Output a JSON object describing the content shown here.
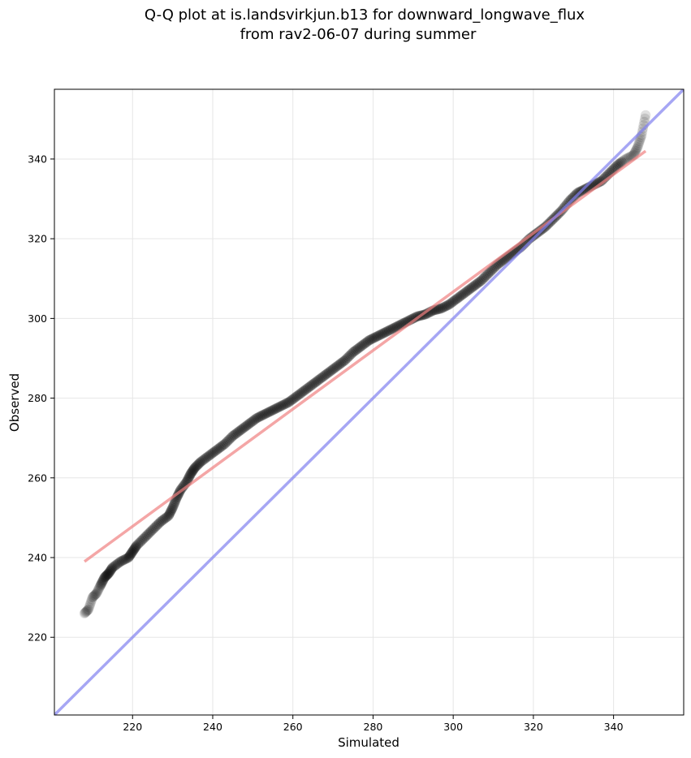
{
  "chart_data": {
    "type": "scatter",
    "title": [
      "Q-Q plot at is.landsvirkjun.b13 for downward_longwave_flux",
      "from rav2-06-07 during summer"
    ],
    "xlabel": "Simulated",
    "ylabel": "Observed",
    "xlim": [
      200.5,
      357.5
    ],
    "ylim": [
      200.5,
      357.5
    ],
    "xticks": [
      220,
      240,
      260,
      280,
      300,
      320,
      340
    ],
    "yticks": [
      220,
      240,
      260,
      280,
      300,
      320,
      340
    ],
    "grid": true,
    "colors": {
      "points": "#000000",
      "fit_line": "#f08080",
      "identity_line": "#8080f0",
      "grid": "#e6e6e6"
    },
    "quantile_curve": [
      [
        208.0,
        226.0
      ],
      [
        209.0,
        227.0
      ],
      [
        210.0,
        230.0
      ],
      [
        211.0,
        231.0
      ],
      [
        212.0,
        233.0
      ],
      [
        213.0,
        235.0
      ],
      [
        214.0,
        236.0
      ],
      [
        215.0,
        237.5
      ],
      [
        217.0,
        239.0
      ],
      [
        219.0,
        240.0
      ],
      [
        220.0,
        241.5
      ],
      [
        221.0,
        243.0
      ],
      [
        223.0,
        245.0
      ],
      [
        225.0,
        247.0
      ],
      [
        227.0,
        249.0
      ],
      [
        229.0,
        250.5
      ],
      [
        230.0,
        252.5
      ],
      [
        231.0,
        255.0
      ],
      [
        232.0,
        257.0
      ],
      [
        233.5,
        259.0
      ],
      [
        234.5,
        261.0
      ],
      [
        235.5,
        262.5
      ],
      [
        237.0,
        264.0
      ],
      [
        239.0,
        265.5
      ],
      [
        241.0,
        267.0
      ],
      [
        243.0,
        268.5
      ],
      [
        245.0,
        270.5
      ],
      [
        247.0,
        272.0
      ],
      [
        249.0,
        273.5
      ],
      [
        251.0,
        275.0
      ],
      [
        253.0,
        276.0
      ],
      [
        255.0,
        277.0
      ],
      [
        257.0,
        278.0
      ],
      [
        259.0,
        279.0
      ],
      [
        261.0,
        280.5
      ],
      [
        263.0,
        282.0
      ],
      [
        265.0,
        283.5
      ],
      [
        267.0,
        285.0
      ],
      [
        269.0,
        286.5
      ],
      [
        271.0,
        288.0
      ],
      [
        273.0,
        289.5
      ],
      [
        275.0,
        291.5
      ],
      [
        277.0,
        293.0
      ],
      [
        279.0,
        294.5
      ],
      [
        281.0,
        295.5
      ],
      [
        283.0,
        296.5
      ],
      [
        285.0,
        297.5
      ],
      [
        287.0,
        298.5
      ],
      [
        289.0,
        299.5
      ],
      [
        291.0,
        300.5
      ],
      [
        293.0,
        301.0
      ],
      [
        295.0,
        302.0
      ],
      [
        297.0,
        302.5
      ],
      [
        299.0,
        303.5
      ],
      [
        301.0,
        305.0
      ],
      [
        303.0,
        306.5
      ],
      [
        305.0,
        308.0
      ],
      [
        307.0,
        309.5
      ],
      [
        309.0,
        311.5
      ],
      [
        311.0,
        313.5
      ],
      [
        313.0,
        315.0
      ],
      [
        315.0,
        316.5
      ],
      [
        317.0,
        318.0
      ],
      [
        319.0,
        320.0
      ],
      [
        321.0,
        321.5
      ],
      [
        323.0,
        323.0
      ],
      [
        325.0,
        325.0
      ],
      [
        327.0,
        327.0
      ],
      [
        329.0,
        329.5
      ],
      [
        331.0,
        331.5
      ],
      [
        333.0,
        332.5
      ],
      [
        335.0,
        333.5
      ],
      [
        337.0,
        334.5
      ],
      [
        339.0,
        336.5
      ],
      [
        341.0,
        338.5
      ],
      [
        343.0,
        340.0
      ],
      [
        345.0,
        341.0
      ],
      [
        346.0,
        343.0
      ],
      [
        347.0,
        346.0
      ],
      [
        348.0,
        351.0
      ]
    ],
    "fit_line": {
      "x": [
        208,
        348
      ],
      "y": [
        239,
        342
      ]
    },
    "identity_line": {
      "x": [
        200.5,
        357.5
      ],
      "y": [
        200.5,
        357.5
      ]
    }
  }
}
